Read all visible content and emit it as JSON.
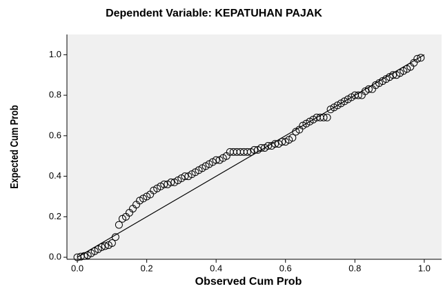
{
  "chart_data": {
    "type": "scatter",
    "title": "Dependent Variable: KEPATUHAN PAJAK",
    "x_label": "Observed Cum Prob",
    "y_label": "Expected Cum Prob",
    "x": [
      0,
      0.01,
      0.02,
      0.03,
      0.04,
      0.05,
      0.06,
      0.07,
      0.08,
      0.09,
      0.1,
      0.11,
      0.12,
      0.13,
      0.14,
      0.15,
      0.16,
      0.17,
      0.18,
      0.19,
      0.2,
      0.21,
      0.22,
      0.23,
      0.24,
      0.25,
      0.26,
      0.27,
      0.28,
      0.29,
      0.3,
      0.31,
      0.32,
      0.33,
      0.34,
      0.35,
      0.36,
      0.37,
      0.38,
      0.39,
      0.4,
      0.41,
      0.42,
      0.43,
      0.44,
      0.45,
      0.46,
      0.47,
      0.48,
      0.49,
      0.5,
      0.51,
      0.52,
      0.53,
      0.54,
      0.55,
      0.56,
      0.57,
      0.58,
      0.59,
      0.6,
      0.61,
      0.62,
      0.63,
      0.64,
      0.65,
      0.66,
      0.67,
      0.68,
      0.69,
      0.7,
      0.71,
      0.72,
      0.73,
      0.74,
      0.75,
      0.76,
      0.77,
      0.78,
      0.79,
      0.8,
      0.81,
      0.82,
      0.83,
      0.84,
      0.85,
      0.86,
      0.87,
      0.88,
      0.89,
      0.9,
      0.91,
      0.92,
      0.93,
      0.94,
      0.95,
      0.96,
      0.97,
      0.98,
      0.99
    ],
    "values": [
      0,
      0.003,
      0.006,
      0.01,
      0.02,
      0.03,
      0.04,
      0.05,
      0.055,
      0.06,
      0.07,
      0.1,
      0.16,
      0.19,
      0.2,
      0.22,
      0.24,
      0.26,
      0.28,
      0.29,
      0.3,
      0.31,
      0.33,
      0.34,
      0.35,
      0.36,
      0.36,
      0.37,
      0.37,
      0.38,
      0.39,
      0.4,
      0.4,
      0.41,
      0.42,
      0.43,
      0.44,
      0.45,
      0.46,
      0.47,
      0.48,
      0.48,
      0.49,
      0.5,
      0.52,
      0.52,
      0.52,
      0.52,
      0.52,
      0.52,
      0.52,
      0.53,
      0.53,
      0.54,
      0.54,
      0.55,
      0.55,
      0.56,
      0.56,
      0.57,
      0.57,
      0.58,
      0.59,
      0.62,
      0.63,
      0.65,
      0.66,
      0.67,
      0.68,
      0.69,
      0.69,
      0.69,
      0.69,
      0.73,
      0.74,
      0.75,
      0.76,
      0.77,
      0.78,
      0.79,
      0.8,
      0.8,
      0.8,
      0.82,
      0.83,
      0.83,
      0.85,
      0.86,
      0.87,
      0.88,
      0.89,
      0.9,
      0.9,
      0.91,
      0.92,
      0.93,
      0.94,
      0.96,
      0.98,
      0.985
    ],
    "color": "#000000",
    "xlim": [
      -0.03,
      1.05
    ],
    "ylim": [
      -0.01,
      1.1
    ],
    "xticks": [
      {
        "value": 0,
        "label": "0.0"
      },
      {
        "value": 0.2,
        "label": "0.2"
      },
      {
        "value": 0.4,
        "label": "0.4"
      },
      {
        "value": 0.6,
        "label": "0.6"
      },
      {
        "value": 0.8,
        "label": "0.8"
      },
      {
        "value": 1,
        "label": "1.0"
      }
    ],
    "yticks": [
      {
        "value": 0,
        "label": "0.0"
      },
      {
        "value": 0.2,
        "label": "0.2"
      },
      {
        "value": 0.4,
        "label": "0.4"
      },
      {
        "value": 0.6,
        "label": "0.6"
      },
      {
        "value": 0.8,
        "label": "0.8"
      },
      {
        "value": 1,
        "label": "1.0"
      }
    ]
  }
}
